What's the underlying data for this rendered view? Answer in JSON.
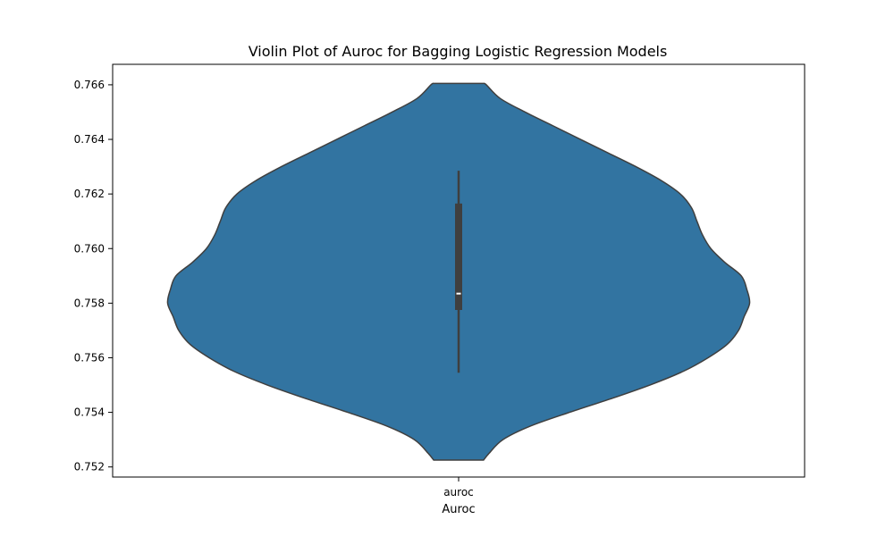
{
  "chart_data": {
    "type": "violin",
    "title": "Violin Plot of Auroc for Bagging Logistic Regression Models",
    "xlabel": "Auroc",
    "ylabel": "",
    "categories": [
      "auroc"
    ],
    "ylim": [
      0.75163,
      0.76675
    ],
    "yticks": [
      0.752,
      0.754,
      0.756,
      0.758,
      0.76,
      0.762,
      0.764,
      0.766
    ],
    "ytick_labels": [
      "0.752",
      "0.754",
      "0.756",
      "0.758",
      "0.760",
      "0.762",
      "0.764",
      "0.766"
    ],
    "grid": false,
    "legend": "none",
    "violin": {
      "min": 0.75225,
      "max": 0.76605,
      "density_profile": [
        {
          "y": 0.75225,
          "w": 0.09
        },
        {
          "y": 0.7525,
          "w": 0.11
        },
        {
          "y": 0.753,
          "w": 0.16
        },
        {
          "y": 0.7535,
          "w": 0.26
        },
        {
          "y": 0.754,
          "w": 0.4
        },
        {
          "y": 0.7545,
          "w": 0.55
        },
        {
          "y": 0.755,
          "w": 0.69
        },
        {
          "y": 0.7555,
          "w": 0.81
        },
        {
          "y": 0.756,
          "w": 0.9
        },
        {
          "y": 0.7565,
          "w": 0.97
        },
        {
          "y": 0.757,
          "w": 1.01
        },
        {
          "y": 0.7575,
          "w": 1.03
        },
        {
          "y": 0.758,
          "w": 1.05
        },
        {
          "y": 0.7585,
          "w": 1.04
        },
        {
          "y": 0.759,
          "w": 1.02
        },
        {
          "y": 0.7595,
          "w": 0.96
        },
        {
          "y": 0.76,
          "w": 0.91
        },
        {
          "y": 0.7605,
          "w": 0.88
        },
        {
          "y": 0.761,
          "w": 0.86
        },
        {
          "y": 0.7615,
          "w": 0.84
        },
        {
          "y": 0.762,
          "w": 0.8
        },
        {
          "y": 0.7625,
          "w": 0.73
        },
        {
          "y": 0.763,
          "w": 0.64
        },
        {
          "y": 0.7635,
          "w": 0.54
        },
        {
          "y": 0.764,
          "w": 0.44
        },
        {
          "y": 0.7645,
          "w": 0.34
        },
        {
          "y": 0.765,
          "w": 0.24
        },
        {
          "y": 0.7655,
          "w": 0.15
        },
        {
          "y": 0.766,
          "w": 0.1
        },
        {
          "y": 0.76605,
          "w": 0.09
        }
      ],
      "box": {
        "whisker_low": 0.75545,
        "q1": 0.75775,
        "median": 0.75835,
        "q3": 0.76165,
        "whisker_high": 0.76285
      }
    },
    "colors": {
      "fill": "#3274a1",
      "outline": "#3f3f3f",
      "box": "#3f3f3f",
      "median": "#ffffff"
    }
  }
}
